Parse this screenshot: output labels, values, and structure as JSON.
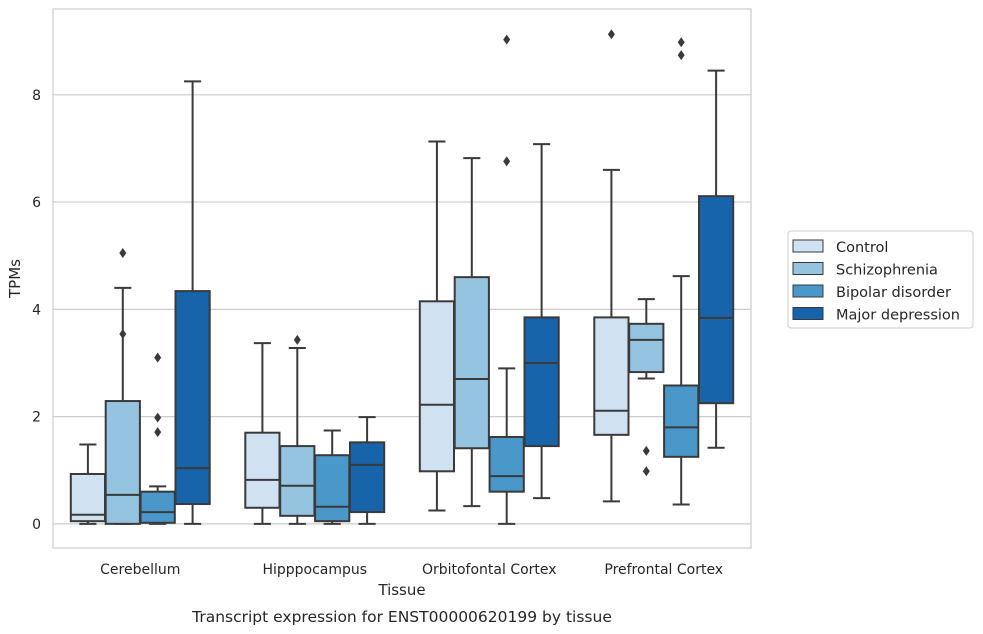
{
  "caption": "Transcript expression for ENST00000620199 by tissue",
  "chart_data": {
    "type": "box",
    "title": "",
    "xlabel": "Tissue",
    "ylabel": "TPMs",
    "ylim": [
      -0.45,
      9.6
    ],
    "yticks": [
      0,
      2,
      4,
      6,
      8
    ],
    "ytick_labels": [
      "0",
      "2",
      "4",
      "6",
      "8"
    ],
    "grid": "horizontal",
    "legend_position": "right",
    "categories": [
      "Cerebellum",
      "Hipppocampus",
      "Orbitofontal Cortex",
      "Prefrontal Cortex"
    ],
    "series": [
      {
        "name": "Control",
        "color": "#d0e1f2",
        "boxes": [
          {
            "whislo": 0.0,
            "q1": 0.05,
            "med": 0.17,
            "q3": 0.93,
            "whishi": 1.48,
            "fliers": []
          },
          {
            "whislo": 0.0,
            "q1": 0.3,
            "med": 0.82,
            "q3": 1.7,
            "whishi": 3.37,
            "fliers": []
          },
          {
            "whislo": 0.25,
            "q1": 0.98,
            "med": 2.22,
            "q3": 4.15,
            "whishi": 7.13,
            "fliers": []
          },
          {
            "whislo": 0.42,
            "q1": 1.66,
            "med": 2.11,
            "q3": 3.85,
            "whishi": 6.6,
            "fliers": [
              9.13
            ]
          }
        ]
      },
      {
        "name": "Schizophrenia",
        "color": "#94c4df",
        "boxes": [
          {
            "whislo": 0.0,
            "q1": 0.0,
            "med": 0.54,
            "q3": 2.29,
            "whishi": 4.4,
            "fliers": [
              5.05,
              3.54
            ]
          },
          {
            "whislo": 0.0,
            "q1": 0.15,
            "med": 0.71,
            "q3": 1.45,
            "whishi": 3.28,
            "fliers": [
              3.43
            ]
          },
          {
            "whislo": 0.33,
            "q1": 1.41,
            "med": 2.7,
            "q3": 4.6,
            "whishi": 6.82,
            "fliers": []
          },
          {
            "whislo": 2.71,
            "q1": 2.83,
            "med": 3.43,
            "q3": 3.73,
            "whishi": 4.19,
            "fliers": [
              1.36,
              0.98
            ]
          }
        ]
      },
      {
        "name": "Bipolar disorder",
        "color": "#4a98c9",
        "boxes": [
          {
            "whislo": 0.0,
            "q1": 0.02,
            "med": 0.22,
            "q3": 0.6,
            "whishi": 0.7,
            "fliers": [
              3.1,
              1.98,
              1.71
            ]
          },
          {
            "whislo": 0.0,
            "q1": 0.05,
            "med": 0.32,
            "q3": 1.28,
            "whishi": 1.74,
            "fliers": []
          },
          {
            "whislo": 0.0,
            "q1": 0.6,
            "med": 0.89,
            "q3": 1.62,
            "whishi": 2.9,
            "fliers": [
              9.03,
              6.76
            ]
          },
          {
            "whislo": 0.36,
            "q1": 1.25,
            "med": 1.8,
            "q3": 2.58,
            "whishi": 4.62,
            "fliers": [
              8.98,
              8.74
            ]
          }
        ]
      },
      {
        "name": "Major depression",
        "color": "#1764ab",
        "boxes": [
          {
            "whislo": 0.0,
            "q1": 0.37,
            "med": 1.04,
            "q3": 4.34,
            "whishi": 8.25,
            "fliers": []
          },
          {
            "whislo": 0.0,
            "q1": 0.22,
            "med": 1.1,
            "q3": 1.52,
            "whishi": 1.99,
            "fliers": []
          },
          {
            "whislo": 0.48,
            "q1": 1.45,
            "med": 3.0,
            "q3": 3.85,
            "whishi": 7.08,
            "fliers": []
          },
          {
            "whislo": 1.42,
            "q1": 2.25,
            "med": 3.84,
            "q3": 6.11,
            "whishi": 8.45,
            "fliers": []
          }
        ]
      }
    ]
  }
}
